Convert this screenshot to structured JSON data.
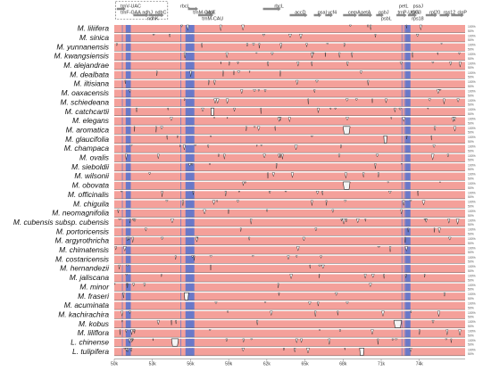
{
  "figure": {
    "species": [
      "M. liliifera",
      "M. sinica",
      "M. yunnanensis",
      "M. kwangsiensis",
      "M. alejandrae",
      "M. dealbata",
      "M. iltisiana",
      "M. oaxacensis",
      "M. schiedeana",
      "M. catchcartii",
      "M. elegans",
      "M. aromatica",
      "M. glaucifolia",
      "M. champaca",
      "M. ovalis",
      "M. sieboldii",
      "M. wilsonii",
      "M. obovata",
      "M. officinalis",
      "M. chiguila",
      "M. neomagnifolia",
      "M. cubensis subsp. cubensis",
      "M. portoricensis",
      "M. argyrothricha",
      "M. chimatensis",
      "M. costaricensis",
      "M. hernandezii",
      "M. jaliscana",
      "M. minor",
      "M. fraseri",
      "M. acuminata",
      "M. kachirachira",
      "M. kobus",
      "M. liliflora",
      "L. chinense",
      "L. tulipifera"
    ],
    "gene_labels": [
      {
        "text": "trnV-UAC",
        "pos": 0.5,
        "row": 1
      },
      {
        "text": "rbcL",
        "pos": 5.2,
        "row": 1
      },
      {
        "text": "trnF-GAA",
        "pos": 0.5,
        "row": 2
      },
      {
        "text": "ndhJ",
        "pos": 2.2,
        "row": 2
      },
      {
        "text": "ndhC",
        "pos": 3.2,
        "row": 2
      },
      {
        "text": "ndhK",
        "pos": 2.6,
        "row": 3
      },
      {
        "text": "trnM-CAU",
        "pos": 6.2,
        "row": 2
      },
      {
        "text": "atpE",
        "pos": 7.2,
        "row": 2
      },
      {
        "text": "trnM-CAU",
        "pos": 6.9,
        "row": 3
      },
      {
        "text": "rbcL",
        "pos": 12.6,
        "row": 1
      },
      {
        "text": "accD",
        "pos": 14.2,
        "row": 2
      },
      {
        "text": "psaI",
        "pos": 16.0,
        "row": 2
      },
      {
        "text": "ycf4",
        "pos": 16.8,
        "row": 2
      },
      {
        "text": "cemA",
        "pos": 18.4,
        "row": 2
      },
      {
        "text": "petA",
        "pos": 19.4,
        "row": 2
      },
      {
        "text": "psbJ",
        "pos": 20.8,
        "row": 2
      },
      {
        "text": "petL",
        "pos": 22.4,
        "row": 1
      },
      {
        "text": "psbL",
        "pos": 21.0,
        "row": 3
      },
      {
        "text": "trnP-UGG",
        "pos": 22.3,
        "row": 2
      },
      {
        "text": "psaJ",
        "pos": 23.5,
        "row": 1
      },
      {
        "text": "rpl33",
        "pos": 23.3,
        "row": 2
      },
      {
        "text": "rps18",
        "pos": 23.4,
        "row": 3
      },
      {
        "text": "rpl20",
        "pos": 24.8,
        "row": 2
      },
      {
        "text": "rps12",
        "pos": 25.9,
        "row": 2
      },
      {
        "text": "clpP",
        "pos": 27.0,
        "row": 2
      }
    ],
    "x_ticks": [
      "50k",
      "53k",
      "56k",
      "59k",
      "62k",
      "65k",
      "68k",
      "71k",
      "74k"
    ],
    "row_ticks": [
      "100%",
      "50%"
    ],
    "colors": {
      "conserved_noncoding": "#f4a09a",
      "exon": "#6a79c9",
      "divergence": "#ffffff",
      "outline": "#000000"
    },
    "gap_features": [
      {
        "species_index": 9,
        "pos": 7.6,
        "width": 0.25
      },
      {
        "species_index": 11,
        "pos": 18.0,
        "width": 0.55
      },
      {
        "species_index": 12,
        "pos": 21.2,
        "width": 0.25
      },
      {
        "species_index": 17,
        "pos": 18.0,
        "width": 0.55
      },
      {
        "species_index": 29,
        "pos": 5.5,
        "width": 0.35
      },
      {
        "species_index": 32,
        "pos": 22.0,
        "width": 0.6
      },
      {
        "species_index": 34,
        "pos": 4.5,
        "width": 0.55
      },
      {
        "species_index": 35,
        "pos": 19.3,
        "width": 0.35
      }
    ]
  }
}
